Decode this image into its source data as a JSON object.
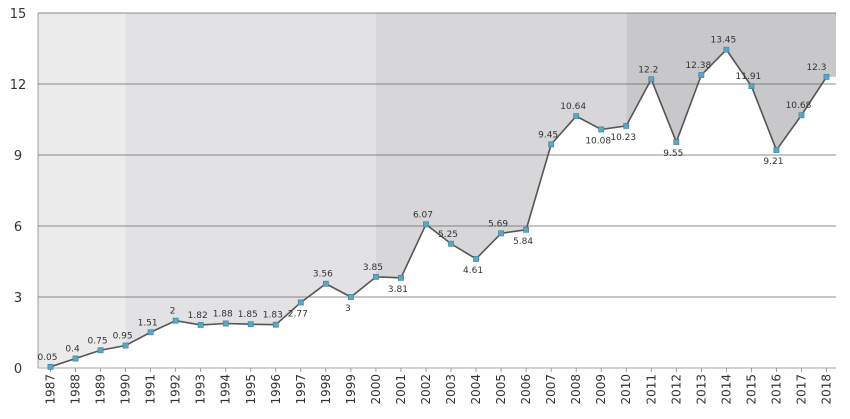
{
  "chart_data": {
    "type": "line",
    "title": "",
    "xlabel": "",
    "ylabel": "",
    "x": [
      "1987",
      "1988",
      "1989",
      "1990",
      "1991",
      "1992",
      "1993",
      "1994",
      "1995",
      "1996",
      "1997",
      "1998",
      "1999",
      "2000",
      "2001",
      "2002",
      "2003",
      "2004",
      "2005",
      "2006",
      "2007",
      "2008",
      "2009",
      "2010",
      "2011",
      "2012",
      "2013",
      "2014",
      "2015",
      "2016",
      "2017",
      "2018"
    ],
    "series": [
      {
        "values": [
          0.05,
          0.4,
          0.75,
          0.95,
          1.51,
          2,
          1.82,
          1.88,
          1.85,
          1.83,
          2.77,
          3.56,
          3,
          3.85,
          3.81,
          6.07,
          5.25,
          4.61,
          5.69,
          5.84,
          9.45,
          10.64,
          10.08,
          10.23,
          12.2,
          9.55,
          12.38,
          13.45,
          11.91,
          9.21,
          10.68,
          12.3
        ],
        "labels": [
          "0.05",
          "0.4",
          "0.75",
          "0.95",
          "1.51",
          "2",
          "1.82",
          "1.88",
          "1.85",
          "1.83",
          "2.77",
          "3.56",
          "3",
          "3.85",
          "3.81",
          "6.07",
          "5.25",
          "4.61",
          "5.69",
          "5.84",
          "9.45",
          "10.64",
          "10.08",
          "10.23",
          "12.2",
          "9.55",
          "12.38",
          "13.45",
          "11.91",
          "9.21",
          "10.68",
          "12.3"
        ],
        "label_pos": [
          "a",
          "a",
          "a",
          "a",
          "a",
          "a",
          "a",
          "a",
          "a",
          "a",
          "b",
          "a",
          "b",
          "a",
          "b",
          "a",
          "a",
          "b",
          "a",
          "b",
          "a",
          "a",
          "b",
          "b",
          "a",
          "b",
          "a",
          "a",
          "a",
          "b",
          "a",
          "a"
        ]
      }
    ],
    "ylim": [
      0,
      15
    ],
    "yticks": [
      "0",
      "3",
      "6",
      "9",
      "12",
      "15"
    ],
    "grid": true,
    "legend": "none",
    "period_bands": [
      {
        "from": "1987",
        "to": "1990",
        "color": "#ebebeb"
      },
      {
        "from": "1990",
        "to": "2000",
        "color": "#e2e2e4"
      },
      {
        "from": "2000",
        "to": "2010",
        "color": "#d7d7d9"
      },
      {
        "from": "2010",
        "to": "2018",
        "color": "#c8c8ca"
      }
    ],
    "colors": {
      "line": "#555555",
      "marker": "#5aa6c4",
      "marker_stroke": "#3f7e98",
      "grid": "#666666"
    }
  }
}
